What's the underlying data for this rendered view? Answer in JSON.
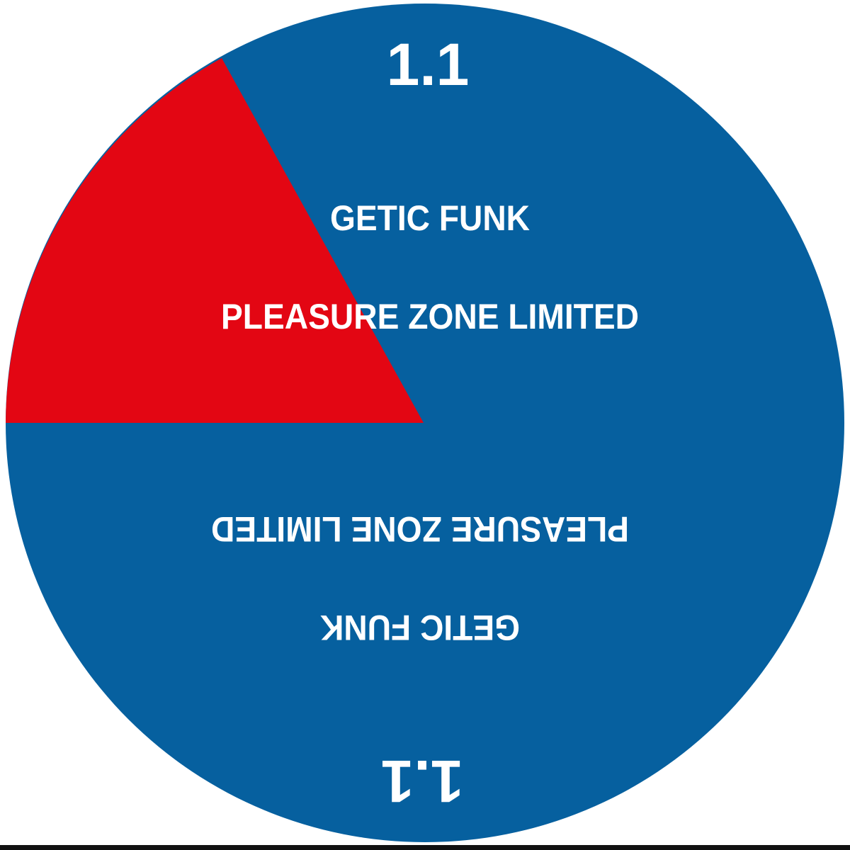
{
  "label": {
    "catalog_number": "1.1",
    "artist": "GETIC FUNK",
    "publisher": "PLEASURE ZONE LIMITED"
  },
  "colors": {
    "background": "#ffffff",
    "label_blue": "#06609f",
    "wedge_red": "#e30613",
    "text": "#ffffff"
  }
}
